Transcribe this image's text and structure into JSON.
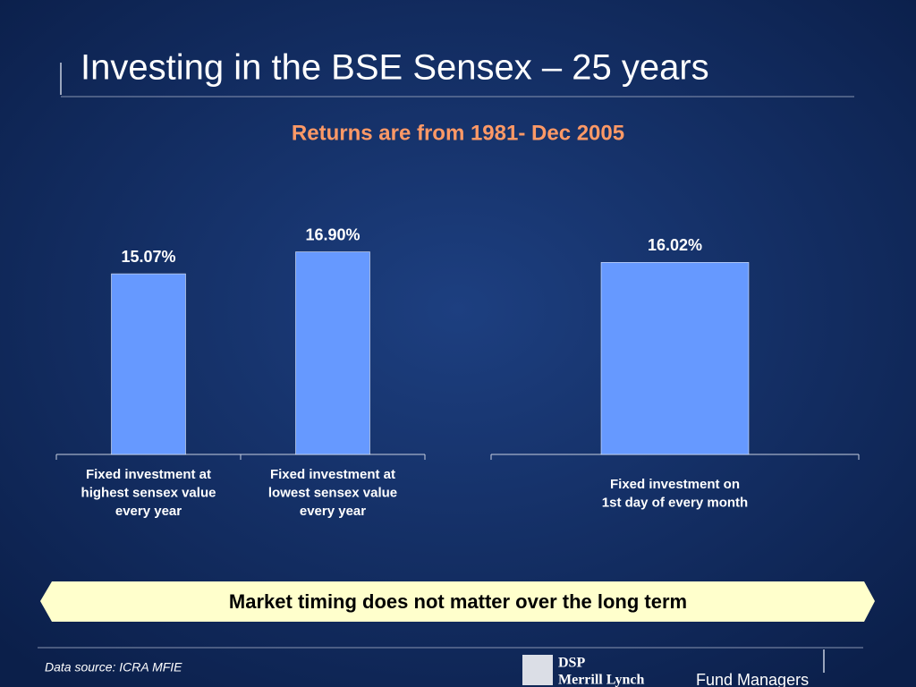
{
  "header": {
    "title": "Investing in the BSE Sensex – 25 years",
    "subtitle": "Returns are from 1981- Dec 2005"
  },
  "chart_data": [
    {
      "type": "bar",
      "categories": [
        [
          "Fixed investment at",
          "highest sensex value",
          "every year"
        ],
        [
          "Fixed investment at",
          "lowest sensex value",
          "every year"
        ]
      ],
      "values": [
        15.07,
        16.9
      ],
      "value_labels": [
        "15.07%",
        "16.90%"
      ],
      "color": "#6699ff",
      "ylim": [
        0,
        20
      ]
    },
    {
      "type": "bar",
      "categories": [
        [
          "Fixed investment on",
          "1st day of every month"
        ]
      ],
      "values": [
        16.02
      ],
      "value_labels": [
        "16.02%"
      ],
      "color": "#6699ff",
      "ylim": [
        0,
        20
      ]
    }
  ],
  "banner": "Market timing does not matter over the long term",
  "footer": {
    "source": "Data source: ICRA MFIE",
    "logo": [
      "DSP",
      "Merrill Lynch",
      "Fund Managers"
    ]
  }
}
